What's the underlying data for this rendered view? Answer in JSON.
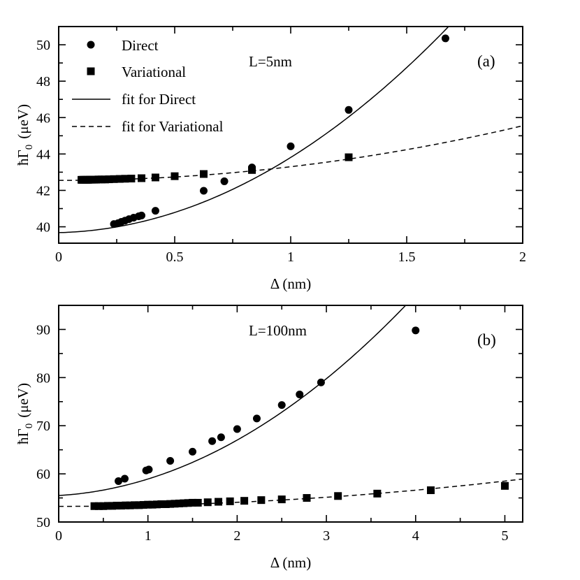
{
  "chart_data": [
    {
      "type": "scatter",
      "panel_label": "(a)",
      "annotation": "L=5nm",
      "xlabel": "Δ (nm)",
      "ylabel_main": "ħΓ",
      "ylabel_sub": "0",
      "ylabel_unit": "(μeV)",
      "xlim": [
        0,
        2
      ],
      "ylim": [
        39.1,
        51
      ],
      "xticks": [
        0,
        0.5,
        1,
        1.5,
        2
      ],
      "xtick_labels": [
        "0",
        "0.5",
        "1",
        "1.5",
        "2"
      ],
      "yticks": [
        40,
        42,
        44,
        46,
        48,
        50
      ],
      "ytick_labels": [
        "40",
        "42",
        "44",
        "46",
        "48",
        "50"
      ],
      "legend": {
        "placement": "top-left",
        "entries": [
          {
            "label": "Direct",
            "marker": "circle"
          },
          {
            "label": "Variational",
            "marker": "square"
          },
          {
            "label": "fit for Direct",
            "marker": "solid-line"
          },
          {
            "label": "fit for Variational",
            "marker": "dashed-line"
          }
        ]
      },
      "series": [
        {
          "name": "Direct",
          "marker": "circle",
          "x": [
            0.238,
            0.256,
            0.27,
            0.286,
            0.303,
            0.323,
            0.345,
            0.357,
            0.417,
            0.625,
            0.714,
            0.833,
            1.0,
            1.25,
            1.667
          ],
          "y": [
            40.15,
            40.2,
            40.27,
            40.34,
            40.42,
            40.5,
            40.58,
            40.62,
            40.88,
            41.98,
            42.5,
            43.26,
            44.42,
            46.42,
            50.35
          ]
        },
        {
          "name": "Variational",
          "marker": "square",
          "x": [
            0.098,
            0.103,
            0.108,
            0.114,
            0.12,
            0.127,
            0.135,
            0.143,
            0.152,
            0.161,
            0.172,
            0.185,
            0.2,
            0.217,
            0.238,
            0.263,
            0.286,
            0.313,
            0.357,
            0.417,
            0.5,
            0.625,
            0.833,
            1.25
          ],
          "y": [
            42.58,
            42.58,
            42.58,
            42.58,
            42.58,
            42.58,
            42.59,
            42.59,
            42.59,
            42.59,
            42.6,
            42.6,
            42.6,
            42.61,
            42.62,
            42.63,
            42.64,
            42.65,
            42.67,
            42.71,
            42.78,
            42.9,
            43.12,
            43.82
          ]
        }
      ],
      "fits": [
        {
          "name": "fit for Direct",
          "style": "solid",
          "a": 39.68,
          "b": 0.3,
          "c": 3.83,
          "x_from": 0,
          "x_to": 2
        },
        {
          "name": "fit for Variational",
          "style": "dashed",
          "a": 42.55,
          "b": 0.0,
          "c": 0.75,
          "x_from": 0,
          "x_to": 2
        }
      ]
    },
    {
      "type": "scatter",
      "panel_label": "(b)",
      "annotation": "L=100nm",
      "xlabel": "Δ (nm)",
      "ylabel_main": "ħΓ",
      "ylabel_sub": "0",
      "ylabel_unit": "(μeV)",
      "xlim": [
        0,
        5.2
      ],
      "ylim": [
        50,
        95
      ],
      "xticks": [
        0,
        1,
        2,
        3,
        4,
        5
      ],
      "xtick_labels": [
        "0",
        "1",
        "2",
        "3",
        "4",
        "5"
      ],
      "yticks": [
        50,
        60,
        70,
        80,
        90
      ],
      "ytick_labels": [
        "50",
        "60",
        "70",
        "80",
        "90"
      ],
      "series": [
        {
          "name": "Direct",
          "marker": "circle",
          "x": [
            0.67,
            0.74,
            0.98,
            1.01,
            1.25,
            1.5,
            1.72,
            1.82,
            2.0,
            2.22,
            2.5,
            2.7,
            2.94,
            4.0
          ],
          "y": [
            58.5,
            59.0,
            60.7,
            60.9,
            62.7,
            64.6,
            66.8,
            67.6,
            69.3,
            71.5,
            74.3,
            76.5,
            79.0,
            89.8
          ]
        },
        {
          "name": "Variational",
          "marker": "square",
          "x": [
            0.4,
            0.45,
            0.5,
            0.55,
            0.6,
            0.65,
            0.7,
            0.75,
            0.8,
            0.85,
            0.9,
            0.95,
            1.0,
            1.05,
            1.1,
            1.15,
            1.2,
            1.25,
            1.3,
            1.35,
            1.4,
            1.45,
            1.5,
            1.56,
            1.67,
            1.79,
            1.92,
            2.08,
            2.27,
            2.5,
            2.78,
            3.13,
            3.57,
            4.17,
            5.0
          ],
          "y": [
            53.3,
            53.3,
            53.3,
            53.35,
            53.35,
            53.4,
            53.4,
            53.45,
            53.45,
            53.5,
            53.5,
            53.55,
            53.6,
            53.6,
            53.65,
            53.7,
            53.7,
            53.75,
            53.8,
            53.85,
            53.9,
            53.95,
            54.0,
            54.0,
            54.1,
            54.2,
            54.3,
            54.4,
            54.55,
            54.7,
            55.0,
            55.4,
            55.9,
            56.6,
            57.5
          ]
        }
      ],
      "fits": [
        {
          "name": "fit for Direct",
          "style": "solid",
          "a": 55.5,
          "b": 1.1,
          "c": 2.33,
          "x_from": 0,
          "x_to": 5.2
        },
        {
          "name": "fit for Variational",
          "style": "dashed",
          "a": 53.25,
          "b": 0.0,
          "c": 0.21,
          "x_from": 0,
          "x_to": 5.2
        }
      ]
    }
  ]
}
